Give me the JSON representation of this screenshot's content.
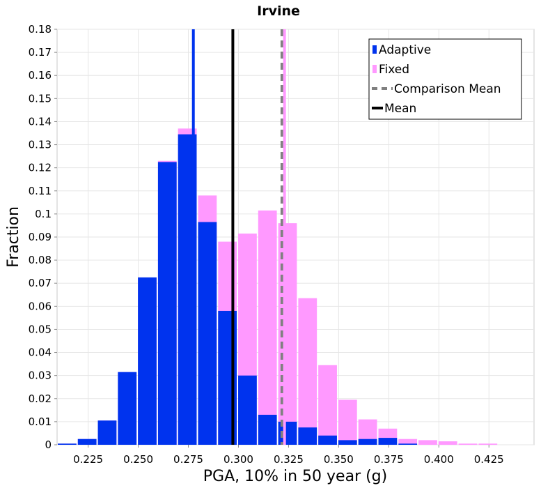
{
  "chart_data": {
    "type": "bar",
    "title": "Irvine",
    "xlabel": "PGA, 10% in 50 year (g)",
    "ylabel": "Fraction",
    "xlim": [
      0.2095,
      0.4475
    ],
    "ylim": [
      0,
      0.18
    ],
    "bin_width": 0.01,
    "grid": true,
    "legend_position": "top-right",
    "x_ticks": [
      0.225,
      0.25,
      0.275,
      0.3,
      0.325,
      0.35,
      0.375,
      0.4,
      0.425
    ],
    "x_tick_labels": [
      "0.225",
      "0.250",
      "0.275",
      "0.300",
      "0.325",
      "0.350",
      "0.375",
      "0.400",
      "0.425"
    ],
    "y_ticks": [
      0,
      0.01,
      0.02,
      0.03,
      0.04,
      0.05,
      0.06,
      0.07,
      0.08,
      0.09,
      0.1,
      0.11,
      0.12,
      0.13,
      0.14,
      0.15,
      0.16,
      0.17,
      0.18
    ],
    "y_tick_labels": [
      "0",
      "0.01",
      "0.02",
      "0.03",
      "0.04",
      "0.05",
      "0.06",
      "0.07",
      "0.08",
      "0.09",
      "0.1",
      "0.11",
      "0.12",
      "0.13",
      "0.14",
      "0.15",
      "0.16",
      "0.17",
      "0.18"
    ],
    "bin_centers": [
      0.2145,
      0.2245,
      0.2345,
      0.2445,
      0.2545,
      0.2645,
      0.2745,
      0.2845,
      0.2945,
      0.3045,
      0.3145,
      0.3245,
      0.3345,
      0.3445,
      0.3545,
      0.3645,
      0.3745,
      0.3845,
      0.3945,
      0.4045,
      0.4145,
      0.4245,
      0.4345
    ],
    "series": [
      {
        "name": "Fixed",
        "color": "#ff99ff",
        "values": [
          0.0005,
          0.0025,
          0.0105,
          0.0315,
          0.0725,
          0.123,
          0.137,
          0.108,
          0.088,
          0.0915,
          0.1015,
          0.096,
          0.0635,
          0.0345,
          0.0195,
          0.011,
          0.007,
          0.0025,
          0.002,
          0.0015,
          0.0005,
          0.0005,
          0.0
        ]
      },
      {
        "name": "Adaptive",
        "color": "#0033ee",
        "values": [
          0.0005,
          0.0025,
          0.0105,
          0.0315,
          0.0725,
          0.1225,
          0.1345,
          0.0965,
          0.058,
          0.03,
          0.013,
          0.01,
          0.0075,
          0.004,
          0.002,
          0.0025,
          0.003,
          0.0005,
          0.0,
          0.0,
          0.0,
          0.0,
          0.0
        ]
      }
    ],
    "reference_lines": [
      {
        "name": "Mean",
        "x": 0.2972,
        "color": "#000000",
        "style": "solid"
      },
      {
        "name": "Comparison Mean",
        "x": 0.3217,
        "color": "#808080",
        "style": "dashed"
      },
      {
        "name": "Adaptive spike",
        "x": 0.2775,
        "color": "#0033ee",
        "style": "solid"
      },
      {
        "name": "Fixed spike",
        "x": 0.323,
        "color": "#ff99ff",
        "style": "solid"
      }
    ],
    "legend": [
      {
        "label": "Adaptive",
        "swatch": "bar",
        "color": "#0033ee"
      },
      {
        "label": "Fixed",
        "swatch": "bar",
        "color": "#ff99ff"
      },
      {
        "label": "Comparison Mean",
        "swatch": "dashed",
        "color": "#808080"
      },
      {
        "label": "Mean",
        "swatch": "solid",
        "color": "#000000"
      }
    ]
  }
}
